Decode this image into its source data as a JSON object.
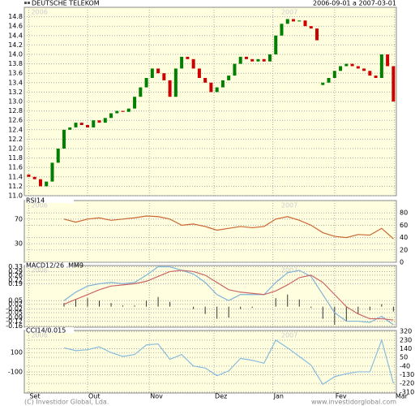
{
  "chart_data": [
    {
      "type": "candlestick",
      "title": "DEUTSCHE TELEKOM",
      "period": "2006-09-01 a 2007-03-01",
      "watermarks": [
        {
          "value": 0,
          "label": "2006"
        },
        {
          "value": 85,
          "label": "2007"
        }
      ],
      "x": [
        0,
        2,
        4,
        6,
        8,
        10,
        12,
        14,
        16,
        18,
        20,
        22,
        24,
        26,
        28,
        30,
        32,
        34,
        36,
        38,
        40,
        42,
        44,
        46,
        48,
        50,
        52,
        54,
        56,
        58,
        60,
        62,
        64,
        66,
        68,
        70,
        72,
        74,
        76,
        78,
        80,
        82,
        84,
        86,
        88,
        90,
        92,
        94,
        96,
        98,
        100,
        102,
        104,
        106,
        108,
        110,
        112,
        114,
        116,
        118,
        120,
        122,
        124
      ],
      "open": [
        11.45,
        11.4,
        11.35,
        11.2,
        11.3,
        11.7,
        12.0,
        12.4,
        12.45,
        12.55,
        12.5,
        12.45,
        12.6,
        12.55,
        12.65,
        12.75,
        12.8,
        12.78,
        12.85,
        13.1,
        13.3,
        13.5,
        13.7,
        13.6,
        13.45,
        13.1,
        13.7,
        13.95,
        13.9,
        13.7,
        13.5,
        13.4,
        13.2,
        13.3,
        13.45,
        13.55,
        13.8,
        13.95,
        13.9,
        13.85,
        13.9,
        13.85,
        14.0,
        14.4,
        14.65,
        14.75,
        14.7,
        14.72,
        14.6,
        14.55,
        13.35,
        13.4,
        13.5,
        13.65,
        13.75,
        13.8,
        13.75,
        13.7,
        13.65,
        13.55,
        13.5,
        14.0,
        13.75
      ],
      "close": [
        11.4,
        11.35,
        11.2,
        11.3,
        11.7,
        12.0,
        12.4,
        12.45,
        12.55,
        12.5,
        12.45,
        12.6,
        12.55,
        12.65,
        12.75,
        12.8,
        12.78,
        12.85,
        13.1,
        13.3,
        13.5,
        13.7,
        13.6,
        13.45,
        13.1,
        13.7,
        13.95,
        13.9,
        13.7,
        13.5,
        13.4,
        13.2,
        13.3,
        13.45,
        13.55,
        13.8,
        13.95,
        13.9,
        13.85,
        13.9,
        13.85,
        14.0,
        14.4,
        14.65,
        14.75,
        14.7,
        14.72,
        14.6,
        14.55,
        14.3,
        13.4,
        13.5,
        13.65,
        13.75,
        13.8,
        13.75,
        13.7,
        13.65,
        13.55,
        13.5,
        14.0,
        13.75,
        13.0
      ],
      "up_color": "#008000",
      "down_color": "#cc0000",
      "ylim": [
        11.0,
        15.0
      ],
      "ytick_side": "left",
      "yticks": [
        {
          "value": 11,
          "label": "11.0"
        },
        11.2,
        11.4,
        11.6,
        11.8,
        {
          "value": 12,
          "label": "12.0"
        },
        12.2,
        12.4,
        12.6,
        12.8,
        {
          "value": 13,
          "label": "13.0"
        },
        13.2,
        13.4,
        13.6,
        13.8,
        {
          "value": 14,
          "label": "14.0"
        },
        14.2,
        14.4,
        14.6,
        14.8
      ]
    },
    {
      "type": "line",
      "title": "RSI14",
      "x": [
        12,
        16,
        20,
        24,
        28,
        32,
        36,
        40,
        44,
        48,
        52,
        56,
        60,
        64,
        68,
        72,
        76,
        80,
        84,
        88,
        92,
        96,
        100,
        104,
        108,
        112,
        116,
        120,
        124
      ],
      "series": [
        {
          "color": "#cc6633",
          "values": [
            70,
            65,
            70,
            72,
            68,
            70,
            72,
            75,
            74,
            70,
            60,
            62,
            58,
            52,
            55,
            58,
            56,
            58,
            70,
            74,
            68,
            60,
            48,
            42,
            40,
            45,
            44,
            55,
            38
          ]
        }
      ],
      "ylim": [
        0,
        100
      ],
      "ytick_side": "right",
      "yticks": [
        0,
        20,
        40,
        60,
        80
      ],
      "levels": [
        70,
        30
      ]
    },
    {
      "type": "combo",
      "title": "MACD12/26 .MM9",
      "x": [
        12,
        16,
        20,
        24,
        28,
        32,
        36,
        40,
        44,
        48,
        52,
        56,
        60,
        64,
        68,
        72,
        76,
        80,
        84,
        88,
        92,
        96,
        100,
        104,
        108,
        112,
        116,
        120,
        124
      ],
      "series": [
        {
          "style": "bar",
          "color": "#333333",
          "values": [
            0.03,
            0.06,
            0.07,
            0.05,
            0.03,
            0.01,
            0.01,
            0.05,
            0.08,
            0.04,
            0,
            -0.02,
            -0.06,
            -0.1,
            -0.09,
            -0.02,
            -0.01,
            0,
            0.07,
            0.1,
            0.06,
            -0.01,
            -0.1,
            -0.15,
            -0.12,
            -0.06,
            -0.03,
            0.02,
            -0.04
          ]
        },
        {
          "style": "line",
          "color": "#7fb2d9",
          "values": [
            0.05,
            0.12,
            0.17,
            0.19,
            0.2,
            0.19,
            0.2,
            0.26,
            0.33,
            0.33,
            0.3,
            0.27,
            0.2,
            0.1,
            0.05,
            0.1,
            0.1,
            0.1,
            0.2,
            0.28,
            0.3,
            0.25,
            0.1,
            -0.05,
            -0.12,
            -0.12,
            -0.13,
            -0.08,
            -0.15
          ]
        },
        {
          "style": "line",
          "color": "#cc6666",
          "values": [
            0.02,
            0.06,
            0.1,
            0.14,
            0.17,
            0.18,
            0.19,
            0.21,
            0.25,
            0.29,
            0.3,
            0.29,
            0.26,
            0.2,
            0.14,
            0.12,
            0.11,
            0.1,
            0.13,
            0.18,
            0.24,
            0.26,
            0.2,
            0.1,
            0,
            -0.06,
            -0.1,
            -0.1,
            -0.11
          ]
        }
      ],
      "ylim": [
        -0.17,
        0.34
      ],
      "ytick_side": "left",
      "yticks": [
        0.33,
        0.29,
        0.26,
        0.22,
        0.19,
        0.05,
        0.02,
        -0.02,
        -0.05,
        -0.09,
        -0.12,
        -0.16
      ]
    },
    {
      "type": "line",
      "title": "CCI14/0.015",
      "x": [
        12,
        16,
        20,
        24,
        28,
        32,
        36,
        40,
        44,
        48,
        52,
        56,
        60,
        64,
        68,
        72,
        76,
        80,
        84,
        88,
        92,
        96,
        100,
        104,
        108,
        112,
        116,
        120,
        124
      ],
      "series": [
        {
          "color": "#88bbdd",
          "values": [
            150,
            120,
            130,
            160,
            100,
            60,
            80,
            180,
            190,
            30,
            80,
            -40,
            -60,
            -140,
            -90,
            40,
            20,
            -10,
            230,
            150,
            60,
            -30,
            -230,
            -150,
            -120,
            -100,
            -100,
            230,
            -220
          ]
        }
      ],
      "ylim": [
        -320,
        330
      ],
      "ytick_side": "right",
      "yticks": [
        320,
        230,
        140,
        50,
        -40,
        -130,
        -220,
        -310
      ],
      "levels": [
        100,
        -100
      ],
      "xlim": [
        -1.5,
        125
      ],
      "xticks": [
        {
          "value": 0,
          "label": "Set"
        },
        {
          "value": 20,
          "label": "Out"
        },
        {
          "value": 41,
          "label": "Nov"
        },
        {
          "value": 63,
          "label": "Dez"
        },
        {
          "value": 83,
          "label": "Jan"
        },
        {
          "value": 104,
          "label": "Fev"
        },
        {
          "value": 124.4,
          "label": "Mar"
        }
      ]
    }
  ],
  "footer": {
    "copyright": "(C) Investidor Global, Lda.",
    "website": "www.investidorglobal.com"
  }
}
